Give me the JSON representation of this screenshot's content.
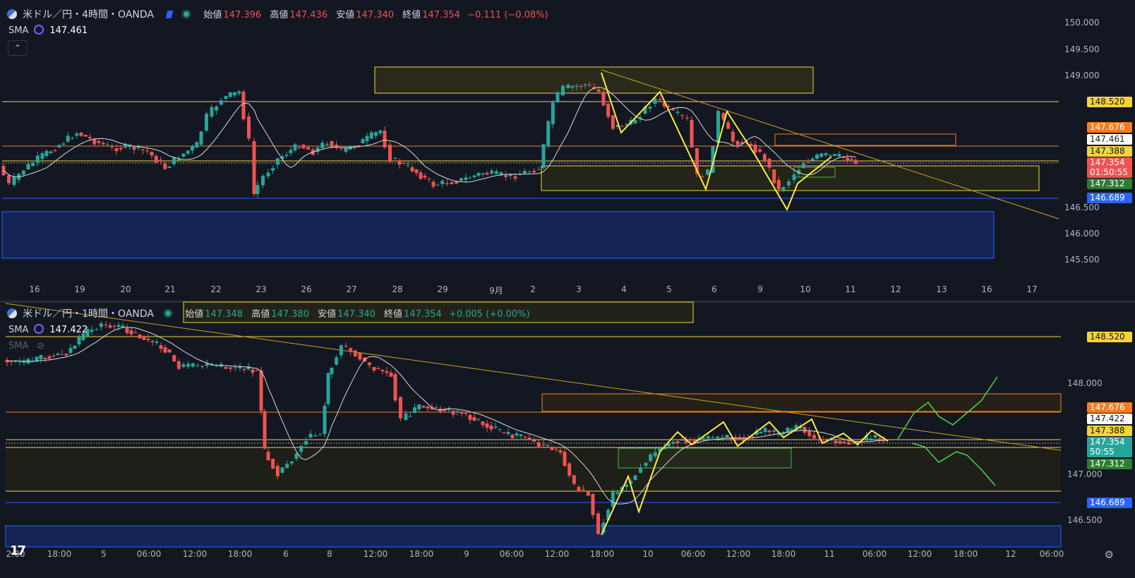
{
  "top": {
    "title": "米ドル／円・4時間・OANDA",
    "open_label": "始値",
    "open": "147.396",
    "high_label": "高値",
    "high": "147.436",
    "low_label": "安値",
    "low": "147.340",
    "close_label": "終値",
    "close": "147.354",
    "change": "−0.111 (−0.08%)",
    "sma_label": "SMA",
    "sma_value": "147.461",
    "price_axis": [
      "150.000",
      "149.500",
      "149.000",
      "146.500",
      "146.000",
      "145.500"
    ],
    "time_axis": [
      "16",
      "19",
      "20",
      "21",
      "22",
      "23",
      "26",
      "27",
      "28",
      "29",
      "9月",
      "2",
      "3",
      "4",
      "5",
      "6",
      "9",
      "10",
      "11",
      "12",
      "13",
      "16",
      "17"
    ],
    "tags": [
      {
        "text": "148.520",
        "bg": "#f5d33b",
        "fg": "#131722"
      },
      {
        "text": "147.676",
        "bg": "#f57c1f",
        "fg": "#ffffff"
      },
      {
        "text": "147.461",
        "bg": "#ffffff",
        "fg": "#131722"
      },
      {
        "text": "147.388",
        "bg": "#f5d33b",
        "fg": "#131722"
      },
      {
        "text": "147.354",
        "bg": "#ef5350",
        "fg": "#ffffff"
      },
      {
        "text": "01:50:55",
        "bg": "#ef5350",
        "fg": "#ffffff"
      },
      {
        "text": "147.312",
        "bg": "#2e7d32",
        "fg": "#ffffff"
      },
      {
        "text": "146.689",
        "bg": "#2962ff",
        "fg": "#ffffff"
      }
    ]
  },
  "bottom": {
    "title": "米ドル／円・1時間・OANDA",
    "open_label": "始値",
    "open": "147.348",
    "high_label": "高値",
    "high": "147.380",
    "low_label": "安値",
    "low": "147.340",
    "close_label": "終値",
    "close": "147.354",
    "change": "+0.005 (+0.00%)",
    "sma_label": "SMA",
    "sma_value": "147.422",
    "sma2_label": "SMA",
    "price_axis": [
      "148.000",
      "147.000",
      "146.500"
    ],
    "time_axis": [
      "2:00",
      "18:00",
      "5",
      "06:00",
      "12:00",
      "18:00",
      "6",
      "8",
      "12:00",
      "18:00",
      "9",
      "06:00",
      "12:00",
      "18:00",
      "10",
      "06:00",
      "12:00",
      "18:00",
      "11",
      "06:00",
      "12:00",
      "18:00",
      "12",
      "06:00"
    ],
    "tags": [
      {
        "text": "148.520",
        "bg": "#f5d33b",
        "fg": "#131722"
      },
      {
        "text": "147.676",
        "bg": "#f57c1f",
        "fg": "#ffffff"
      },
      {
        "text": "147.422",
        "bg": "#ffffff",
        "fg": "#131722"
      },
      {
        "text": "147.388",
        "bg": "#f5d33b",
        "fg": "#131722"
      },
      {
        "text": "147.354",
        "bg": "#26a69a",
        "fg": "#ffffff"
      },
      {
        "text": "50:55",
        "bg": "#26a69a",
        "fg": "#ffffff"
      },
      {
        "text": "147.312",
        "bg": "#2e7d32",
        "fg": "#ffffff"
      },
      {
        "text": "146.689",
        "bg": "#2962ff",
        "fg": "#ffffff"
      }
    ]
  },
  "colors": {
    "up": "#26a69a",
    "down": "#ef5350",
    "bg": "#131722",
    "yellow": "#f5d33b",
    "orange": "#f57c1f",
    "blue": "#2962ff",
    "green_path": "#4cd64c"
  },
  "icons": [
    "us-japan-flag-icon",
    "market-open-dot-icon",
    "collapse-chevron-icon",
    "sma-indicator-icon",
    "hidden-eye-icon",
    "tradingview-logo-icon",
    "settings-gear-icon"
  ]
}
